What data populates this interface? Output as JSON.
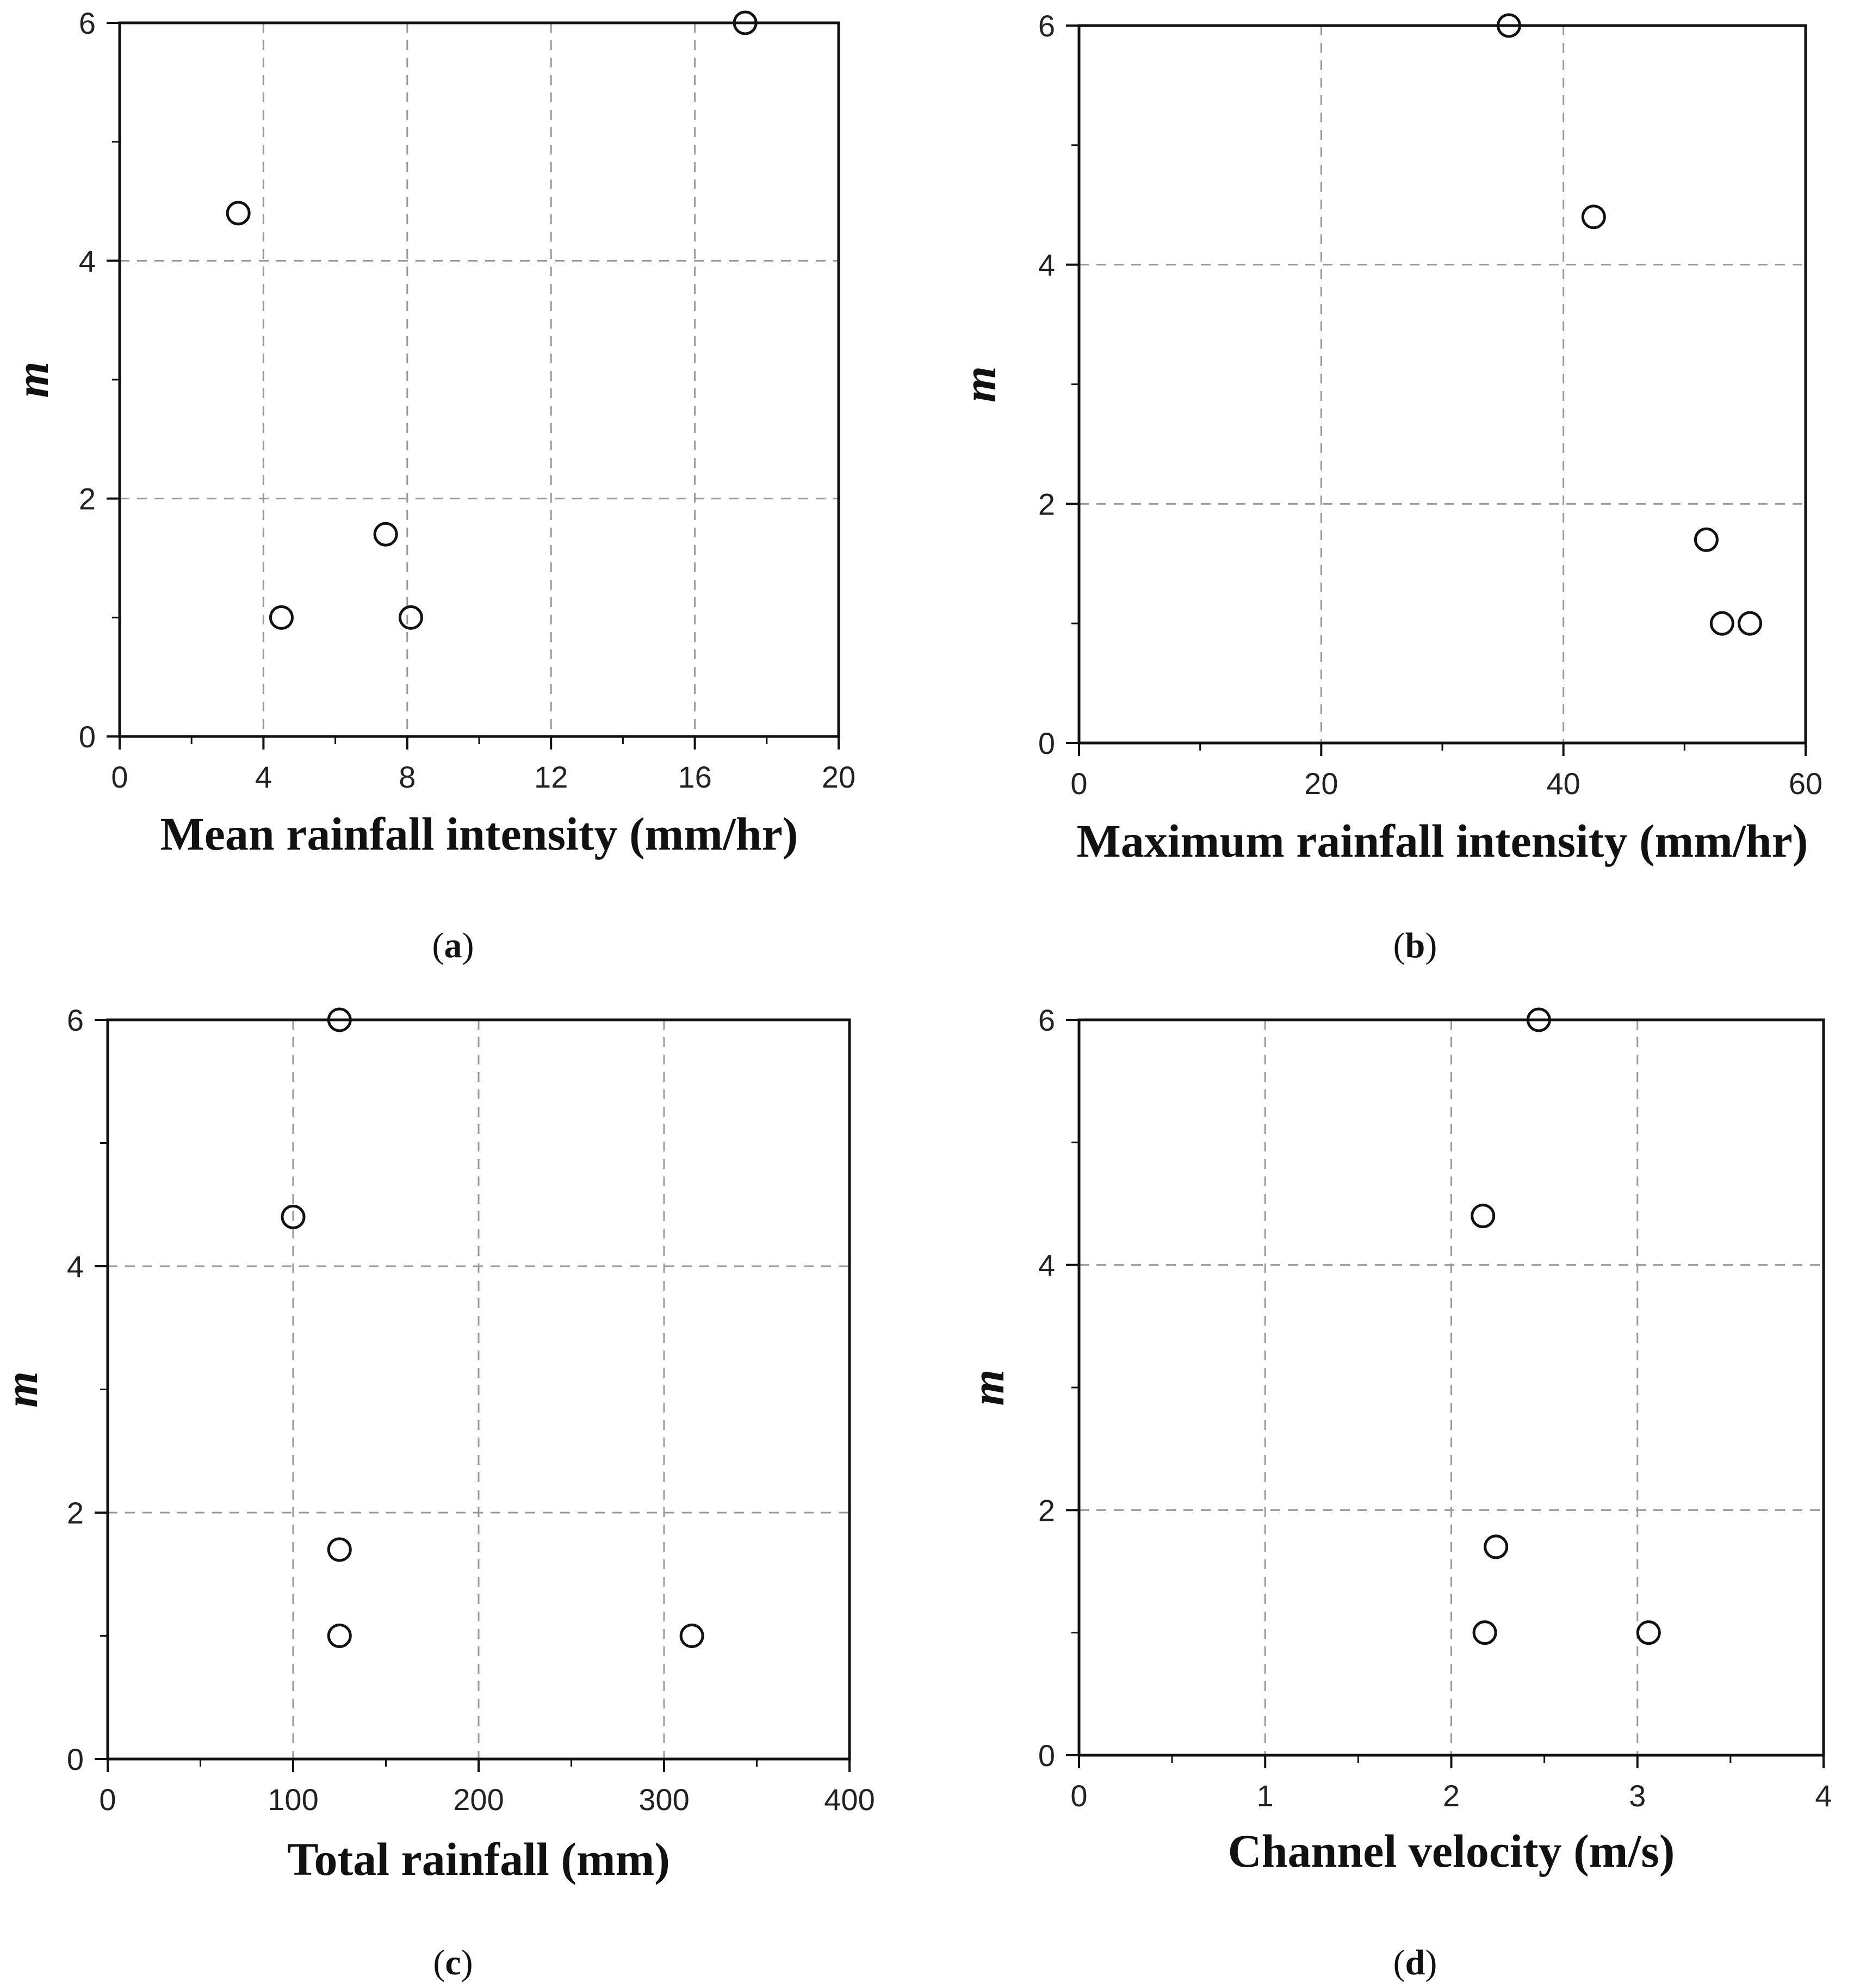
{
  "chart_data": [
    {
      "type": "scatter",
      "panel": "a",
      "xlabel": "Mean rainfall intensity (mm/hr)",
      "ylabel": "m",
      "xlim": [
        0,
        20
      ],
      "ylim": [
        0,
        6
      ],
      "xticks": [
        0,
        4,
        8,
        12,
        16,
        20
      ],
      "yticks": [
        0,
        2,
        4,
        6
      ],
      "grid": true,
      "points": [
        {
          "x": 17.4,
          "y": 6.0
        },
        {
          "x": 3.3,
          "y": 4.4
        },
        {
          "x": 7.4,
          "y": 1.7
        },
        {
          "x": 4.5,
          "y": 1.0
        },
        {
          "x": 8.1,
          "y": 1.0
        }
      ]
    },
    {
      "type": "scatter",
      "panel": "b",
      "xlabel": "Maximum rainfall intensity (mm/hr)",
      "ylabel": "m",
      "xlim": [
        0,
        60
      ],
      "ylim": [
        0,
        6
      ],
      "xticks": [
        0,
        20,
        40,
        60
      ],
      "yticks": [
        0,
        2,
        4,
        6
      ],
      "grid": true,
      "points": [
        {
          "x": 35.5,
          "y": 6.0
        },
        {
          "x": 42.5,
          "y": 4.4
        },
        {
          "x": 51.8,
          "y": 1.7
        },
        {
          "x": 53.1,
          "y": 1.0
        },
        {
          "x": 55.4,
          "y": 1.0
        }
      ]
    },
    {
      "type": "scatter",
      "panel": "c",
      "xlabel": "Total rainfall (mm)",
      "ylabel": "m",
      "xlim": [
        0,
        400
      ],
      "ylim": [
        0,
        6
      ],
      "xticks": [
        0,
        100,
        200,
        300,
        400
      ],
      "yticks": [
        0,
        2,
        4,
        6
      ],
      "grid": true,
      "points": [
        {
          "x": 125,
          "y": 6.0
        },
        {
          "x": 100,
          "y": 4.4
        },
        {
          "x": 125,
          "y": 1.7
        },
        {
          "x": 125,
          "y": 1.0
        },
        {
          "x": 315,
          "y": 1.0
        }
      ]
    },
    {
      "type": "scatter",
      "panel": "d",
      "xlabel": "Channel velocity (m/s)",
      "ylabel": "m",
      "xlim": [
        0,
        4
      ],
      "ylim": [
        0,
        6
      ],
      "xticks": [
        0,
        1,
        2,
        3,
        4
      ],
      "yticks": [
        0,
        2,
        4,
        6
      ],
      "grid": true,
      "points": [
        {
          "x": 2.47,
          "y": 6.0
        },
        {
          "x": 2.17,
          "y": 4.4
        },
        {
          "x": 2.24,
          "y": 1.7
        },
        {
          "x": 2.18,
          "y": 1.0
        },
        {
          "x": 3.06,
          "y": 1.0
        }
      ]
    }
  ],
  "captions": [
    "a",
    "b",
    "c",
    "d"
  ],
  "colors": {
    "axis": "#111111",
    "grid": "#9a9a9a",
    "marker": "#111111"
  }
}
